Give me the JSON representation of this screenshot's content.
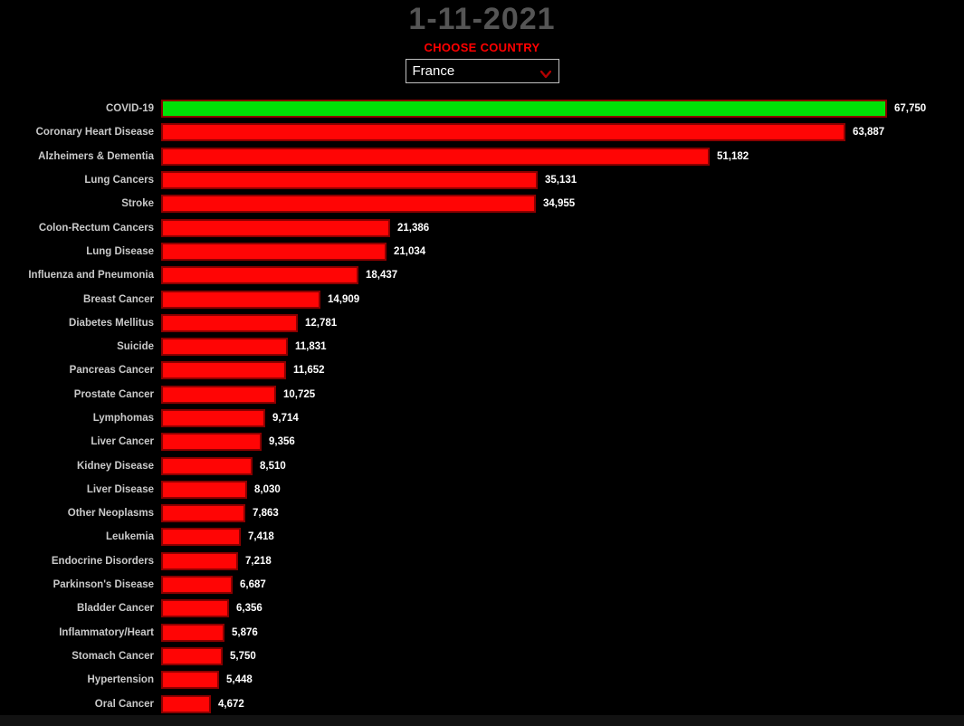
{
  "header": {
    "title": "1-11-2021",
    "choose_country_label": "CHOOSE COUNTRY",
    "country_selected": "France"
  },
  "icons": {
    "dropdown_chevron": "chevron-down-icon"
  },
  "colors": {
    "background": "#000000",
    "page_edge": "#121212",
    "title_text": "#555555",
    "accent_red": "#ff0000",
    "label_text": "#c9c9c9",
    "value_text": "#ffffff",
    "bar_red": "#ff0505",
    "bar_green": "#00e106",
    "bar_border": "#8b0000",
    "select_border": "#c0c0c0",
    "chevron_red": "#b00000"
  },
  "chart_data": {
    "type": "bar",
    "orientation": "horizontal",
    "title": "1-11-2021",
    "xlabel": "",
    "ylabel": "",
    "xlim": [
      0,
      67750
    ],
    "grid": false,
    "legend": "none",
    "highlight_index": 0,
    "categories": [
      "COVID-19",
      "Coronary Heart Disease",
      "Alzheimers & Dementia",
      "Lung Cancers",
      "Stroke",
      "Colon-Rectum Cancers",
      "Lung Disease",
      "Influenza and Pneumonia",
      "Breast Cancer",
      "Diabetes Mellitus",
      "Suicide",
      "Pancreas Cancer",
      "Prostate Cancer",
      "Lymphomas",
      "Liver Cancer",
      "Kidney Disease",
      "Liver Disease",
      "Other Neoplasms",
      "Leukemia",
      "Endocrine Disorders",
      "Parkinson's Disease",
      "Bladder Cancer",
      "Inflammatory/Heart",
      "Stomach Cancer",
      "Hypertension",
      "Oral Cancer"
    ],
    "values": [
      67750,
      63887,
      51182,
      35131,
      34955,
      21386,
      21034,
      18437,
      14909,
      12781,
      11831,
      11652,
      10725,
      9714,
      9356,
      8510,
      8030,
      7863,
      7418,
      7218,
      6687,
      6356,
      5876,
      5750,
      5448,
      4672
    ],
    "value_labels": [
      "67,750",
      "63,887",
      "51,182",
      "35,131",
      "34,955",
      "21,386",
      "21,034",
      "18,437",
      "14,909",
      "12,781",
      "11,831",
      "11,652",
      "10,725",
      "9,714",
      "9,356",
      "8,510",
      "8,030",
      "7,863",
      "7,418",
      "7,218",
      "6,687",
      "6,356",
      "5,876",
      "5,750",
      "5,448",
      "4,672"
    ]
  }
}
